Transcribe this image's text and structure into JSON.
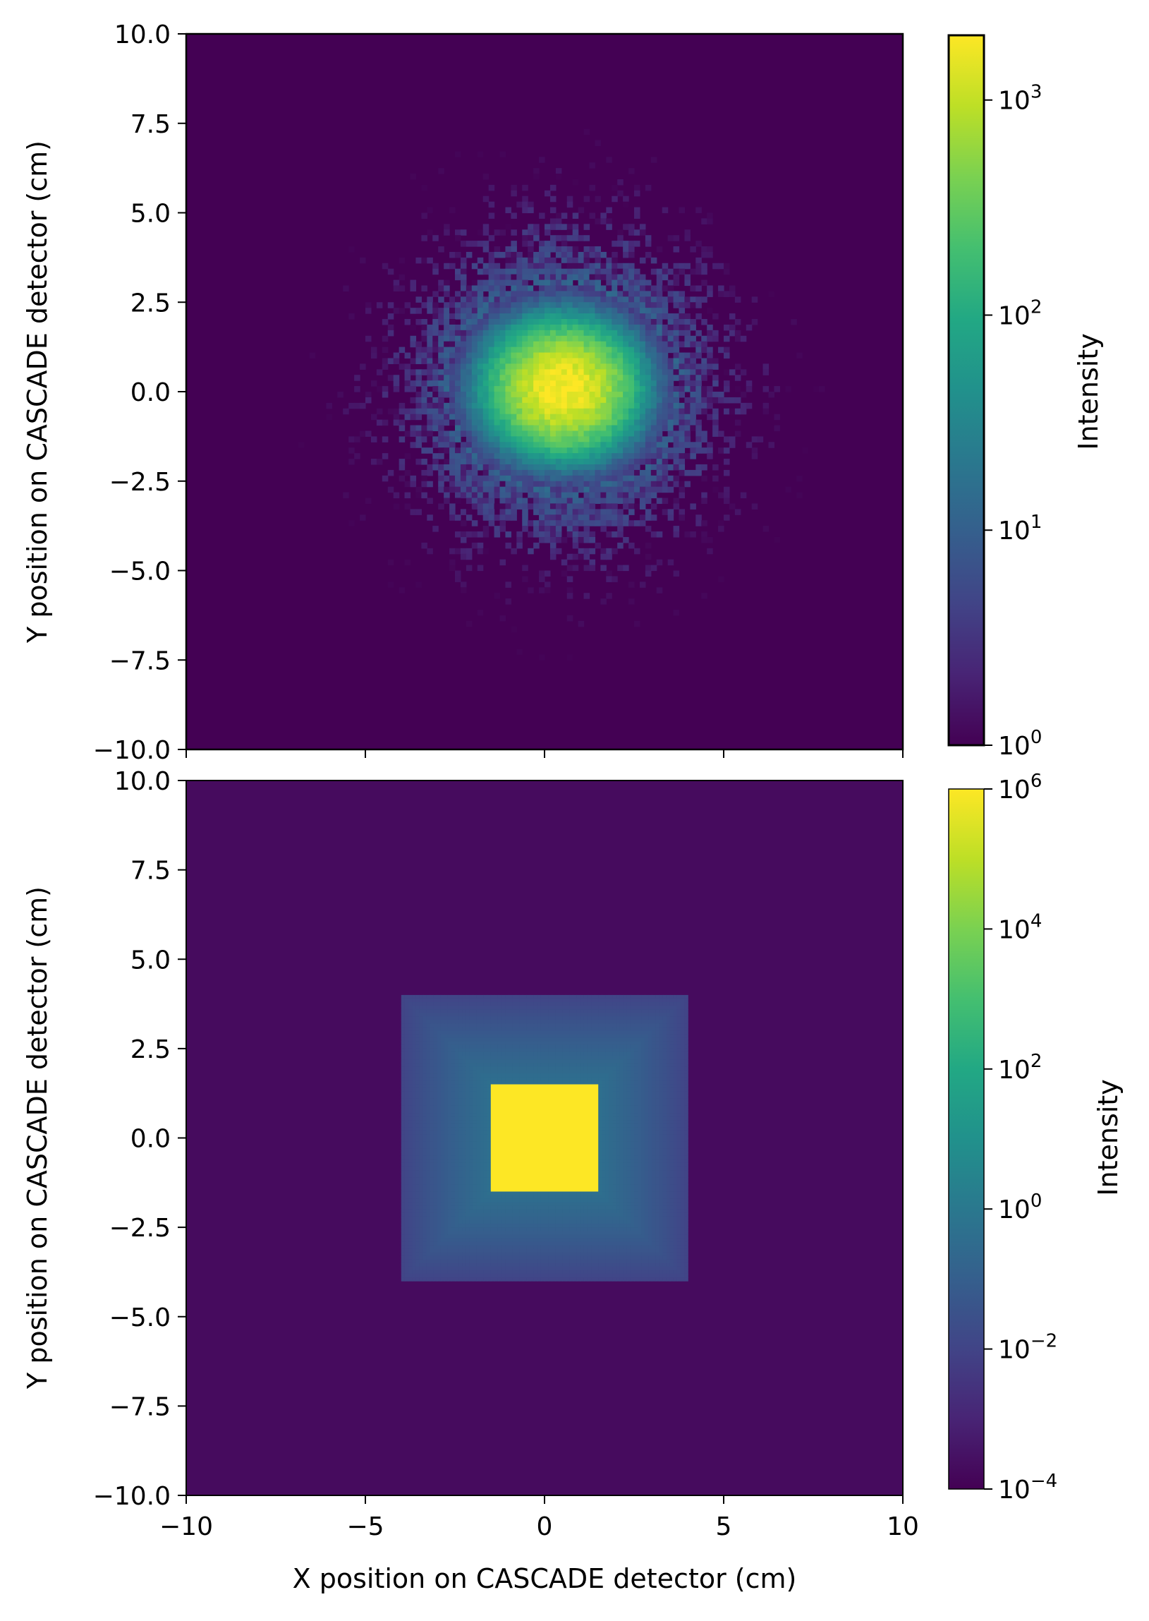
{
  "chart_data": [
    {
      "type": "heatmap",
      "panel": "top",
      "description_source": "measured detector image, 2D histogram with sparse scattered counts",
      "x_range": [
        -10,
        10
      ],
      "y_range": [
        -10,
        10
      ],
      "x_ticks": [
        -10,
        -5,
        0,
        5,
        10
      ],
      "y_ticks": [
        {
          "value": 10,
          "label": "10.0"
        },
        {
          "value": 7.5,
          "label": "7.5"
        },
        {
          "value": 5,
          "label": "5.0"
        },
        {
          "value": 2.5,
          "label": "2.5"
        },
        {
          "value": 0,
          "label": "0.0"
        },
        {
          "value": -2.5,
          "label": "−2.5"
        },
        {
          "value": -5,
          "label": "−5.0"
        },
        {
          "value": -7.5,
          "label": "−7.5"
        },
        {
          "value": -10,
          "label": "−10.0"
        }
      ],
      "ylabel": "Y position on CASCADE detector (cm)",
      "xlabel": "",
      "colorscale": "viridis",
      "color_scale_type": "log",
      "color_range": [
        1,
        2000
      ],
      "colorbar_ticks": [
        {
          "value": 1,
          "label": "10",
          "exp": "0"
        },
        {
          "value": 10,
          "label": "10",
          "exp": "1"
        },
        {
          "value": 100,
          "label": "10",
          "exp": "2"
        },
        {
          "value": 1000,
          "label": "10",
          "exp": "3"
        }
      ],
      "colorbar_label": "Intensity",
      "peak": {
        "x": 0.5,
        "y": 0.1,
        "value": 2000
      },
      "core_sigma_x": 0.85,
      "core_sigma_y": 0.75,
      "halo_sigma_x": 2.2,
      "halo_sigma_y": 2.2,
      "background_value": 1
    },
    {
      "type": "heatmap",
      "panel": "bottom",
      "x_range": [
        -10,
        10
      ],
      "y_range": [
        -10,
        10
      ],
      "x_ticks": [
        {
          "value": -10,
          "label": "−10"
        },
        {
          "value": -5,
          "label": "−5"
        },
        {
          "value": 0,
          "label": "0"
        },
        {
          "value": 5,
          "label": "5"
        },
        {
          "value": 10,
          "label": "10"
        }
      ],
      "y_ticks": [
        {
          "value": 10,
          "label": "10.0"
        },
        {
          "value": 7.5,
          "label": "7.5"
        },
        {
          "value": 5,
          "label": "5.0"
        },
        {
          "value": 2.5,
          "label": "2.5"
        },
        {
          "value": 0,
          "label": "0.0"
        },
        {
          "value": -2.5,
          "label": "−2.5"
        },
        {
          "value": -5,
          "label": "−5.0"
        },
        {
          "value": -7.5,
          "label": "−7.5"
        },
        {
          "value": -10,
          "label": "−10.0"
        }
      ],
      "ylabel": "Y position on CASCADE detector (cm)",
      "xlabel": "X position on CASCADE detector (cm)",
      "colorscale": "viridis",
      "color_scale_type": "log",
      "color_range": [
        0.0001,
        1000000
      ],
      "colorbar_ticks": [
        {
          "value": 0.0001,
          "label": "10",
          "exp": "−4"
        },
        {
          "value": 0.01,
          "label": "10",
          "exp": "−2"
        },
        {
          "value": 1,
          "label": "10",
          "exp": "0"
        },
        {
          "value": 100,
          "label": "10",
          "exp": "2"
        },
        {
          "value": 10000,
          "label": "10",
          "exp": "4"
        },
        {
          "value": 1000000,
          "label": "10",
          "exp": "6"
        }
      ],
      "colorbar_label": "Intensity",
      "regions": [
        {
          "name": "inner-square",
          "x": [
            -1.5,
            1.5
          ],
          "y": [
            -1.5,
            1.5
          ],
          "value": 1000000
        },
        {
          "name": "outer-square",
          "x": [
            -4,
            4
          ],
          "y": [
            -4,
            4
          ],
          "value_center": 2,
          "value_edge": 0.01
        },
        {
          "name": "background",
          "value": 0.0002
        }
      ]
    }
  ]
}
